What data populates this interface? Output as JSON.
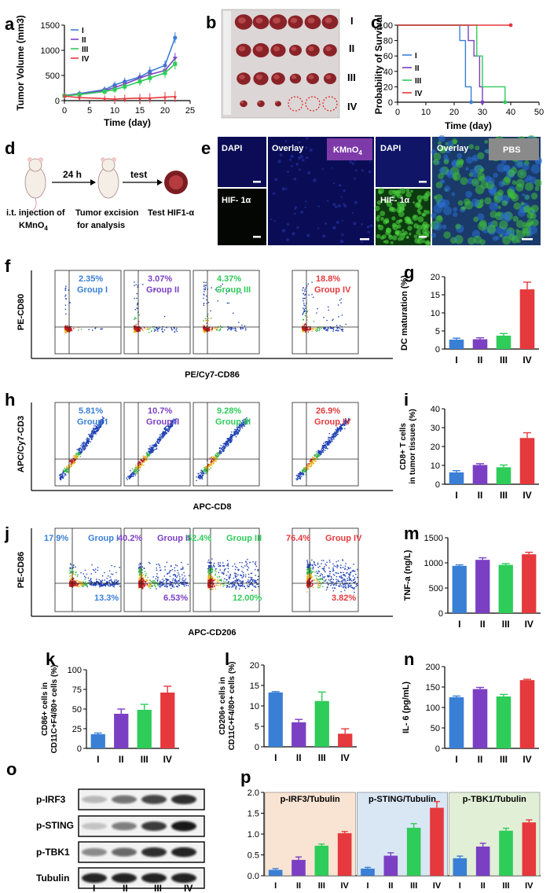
{
  "panel_labels": [
    "a",
    "b",
    "c",
    "d",
    "e",
    "f",
    "g",
    "h",
    "i",
    "j",
    "k",
    "l",
    "m",
    "n",
    "o",
    "p"
  ],
  "groups": [
    "I",
    "II",
    "III",
    "IV"
  ],
  "group_colors": [
    "#3a7fd6",
    "#7b3fc4",
    "#2ecc59",
    "#e5393d"
  ],
  "b": {
    "row_labels": [
      "I",
      "II",
      "III",
      "IV"
    ]
  },
  "d": {
    "step1": "24 h",
    "step2": "test",
    "cap1_l1": "i.t. injection of",
    "cap1_l2": "KMnO",
    "cap2_l1": "Tumor excision",
    "cap2_l2": "for analysis",
    "cap3_l1": "Test HIF1-α"
  },
  "e": {
    "dapi": "DAPI",
    "overlay": "Overlay",
    "hif": "HIF- 1α",
    "kmno4": "KMnO",
    "pbs": "PBS"
  },
  "flow": {
    "f": {
      "ylabel": "PE-CD80",
      "xlabel": "PE/Cy7-CD86",
      "pcts": [
        "2.35%",
        "3.07%",
        "4.37%",
        "18.8%"
      ],
      "names": [
        "Group I",
        "Group II",
        "Group III",
        "Group IV"
      ]
    },
    "h": {
      "ylabel": "APC/Cy7-CD3",
      "xlabel": "APC-CD8",
      "pcts": [
        "5.81%",
        "10.7%",
        "9.28%",
        "26.9%"
      ],
      "names": [
        "Group I",
        "Group II",
        "Group III",
        "Group IV"
      ]
    },
    "j": {
      "ylabel": "PE-CD86",
      "xlabel": "APC-CD206",
      "tl": [
        "17.9%",
        "40.2%",
        "52.4%",
        "76.4%"
      ],
      "names": [
        "Group I",
        "Group II",
        "Group III",
        "Group IV"
      ],
      "br": [
        "13.3%",
        "6.53%",
        "12.00%",
        "3.82%"
      ]
    }
  },
  "o": {
    "rows": [
      "p-IRF3",
      "p-STING",
      "p-TBK1",
      "Tubulin"
    ],
    "lanes": [
      "I",
      "II",
      "III",
      "IV"
    ]
  },
  "chart_data": [
    {
      "panel": "a",
      "type": "line",
      "xlabel": "Time (day)",
      "ylabel": "Tumor Volume (mm3)",
      "xlim": [
        0,
        25
      ],
      "ylim": [
        0,
        1500
      ],
      "xticks": [
        0,
        5,
        10,
        15,
        20,
        25
      ],
      "yticks": [
        0,
        500,
        1000,
        1500
      ],
      "x": [
        0,
        3,
        8,
        10,
        12,
        15,
        17,
        20,
        22
      ],
      "series": [
        {
          "name": "I",
          "values": [
            100,
            140,
            220,
            310,
            380,
            470,
            580,
            700,
            1250
          ]
        },
        {
          "name": "II",
          "values": [
            100,
            130,
            200,
            260,
            330,
            450,
            520,
            600,
            840
          ]
        },
        {
          "name": "III",
          "values": [
            95,
            120,
            180,
            220,
            280,
            380,
            450,
            550,
            730
          ]
        },
        {
          "name": "IV",
          "values": [
            90,
            60,
            40,
            30,
            40,
            50,
            50,
            70,
            80
          ]
        }
      ]
    },
    {
      "panel": "c",
      "type": "line",
      "xlabel": "Time (day)",
      "ylabel": "Probability of Survival",
      "xlim": [
        0,
        50
      ],
      "ylim": [
        0,
        100
      ],
      "xticks": [
        0,
        10,
        20,
        30,
        40,
        50
      ],
      "yticks": [
        0,
        20,
        40,
        60,
        80,
        100
      ],
      "series": [
        {
          "name": "I",
          "steps": [
            [
              0,
              100
            ],
            [
              22,
              100
            ],
            [
              22,
              80
            ],
            [
              24,
              80
            ],
            [
              24,
              20
            ],
            [
              26,
              20
            ],
            [
              26,
              0
            ]
          ]
        },
        {
          "name": "II",
          "steps": [
            [
              0,
              100
            ],
            [
              25,
              100
            ],
            [
              25,
              80
            ],
            [
              27,
              80
            ],
            [
              27,
              60
            ],
            [
              29,
              60
            ],
            [
              29,
              20
            ],
            [
              30,
              20
            ],
            [
              30,
              0
            ]
          ]
        },
        {
          "name": "III",
          "steps": [
            [
              0,
              100
            ],
            [
              28,
              100
            ],
            [
              28,
              60
            ],
            [
              30,
              60
            ],
            [
              30,
              20
            ],
            [
              38,
              20
            ],
            [
              38,
              0
            ]
          ]
        },
        {
          "name": "IV",
          "steps": [
            [
              0,
              100
            ],
            [
              40,
              100
            ]
          ]
        }
      ]
    },
    {
      "panel": "g",
      "type": "bar",
      "ylabel": "DC maturation (%)",
      "ylim": [
        0,
        20
      ],
      "yticks": [
        0,
        5,
        10,
        15,
        20
      ],
      "categories": [
        "I",
        "II",
        "III",
        "IV"
      ],
      "values": [
        2.6,
        2.7,
        3.7,
        16.5
      ],
      "errors": [
        0.4,
        0.4,
        0.6,
        2.0
      ]
    },
    {
      "panel": "i",
      "type": "bar",
      "ylabel_l1": "CD8+ T cells",
      "ylabel_l2": "in tumor tissues (%)",
      "ylim": [
        0,
        40
      ],
      "yticks": [
        0,
        10,
        20,
        30,
        40
      ],
      "categories": [
        "I",
        "II",
        "III",
        "IV"
      ],
      "values": [
        6.3,
        10.2,
        9.0,
        24.5
      ],
      "errors": [
        0.9,
        0.7,
        1.2,
        2.8
      ]
    },
    {
      "panel": "m",
      "type": "bar",
      "ylabel": "TNF-a (ng/L)",
      "ylim": [
        0,
        1500
      ],
      "yticks": [
        0,
        500,
        1000,
        1500
      ],
      "categories": [
        "I",
        "II",
        "III",
        "IV"
      ],
      "values": [
        940,
        1060,
        960,
        1170
      ],
      "errors": [
        20,
        40,
        25,
        40
      ]
    },
    {
      "panel": "k",
      "type": "bar",
      "ylabel_l1": "CD86+ cells in",
      "ylabel_l2": "CD11C+F4/80+ cells (%)",
      "ylim": [
        0,
        100
      ],
      "yticks": [
        0,
        25,
        50,
        75,
        100
      ],
      "categories": [
        "I",
        "II",
        "III",
        "IV"
      ],
      "values": [
        18,
        44,
        49,
        71
      ],
      "errors": [
        1.5,
        6,
        7,
        8
      ]
    },
    {
      "panel": "l",
      "type": "bar",
      "ylabel_l1": "CD206+ cells in",
      "ylabel_l2": "CD11C+F4/80+ cells (%)",
      "ylim": [
        0,
        20
      ],
      "yticks": [
        0,
        5,
        10,
        15,
        20
      ],
      "categories": [
        "I",
        "II",
        "III",
        "IV"
      ],
      "values": [
        13.3,
        6.0,
        11.2,
        3.2
      ],
      "errors": [
        0.2,
        0.7,
        2.2,
        1.2
      ]
    },
    {
      "panel": "n",
      "type": "bar",
      "ylabel": "IL- 6 (pg/mL)",
      "ylim": [
        0,
        200
      ],
      "yticks": [
        0,
        50,
        100,
        150,
        200
      ],
      "categories": [
        "I",
        "II",
        "III",
        "IV"
      ],
      "values": [
        125,
        145,
        127,
        167
      ],
      "errors": [
        3,
        4,
        5,
        2
      ]
    },
    {
      "panel": "p",
      "type": "bar",
      "ylim": [
        0,
        2.0
      ],
      "yticks": [
        0.0,
        0.5,
        1.0,
        1.5,
        2.0
      ],
      "groups": [
        {
          "name": "p-IRF3/Tubulin",
          "categories": [
            "I",
            "II",
            "III",
            "IV"
          ],
          "values": [
            0.14,
            0.38,
            0.72,
            1.02
          ],
          "errors": [
            0.03,
            0.07,
            0.04,
            0.04
          ]
        },
        {
          "name": "p-STING/Tubulin",
          "categories": [
            "I",
            "II",
            "III",
            "IV"
          ],
          "values": [
            0.17,
            0.48,
            1.15,
            1.63
          ],
          "errors": [
            0.03,
            0.07,
            0.1,
            0.15
          ]
        },
        {
          "name": "p-TBK1/Tubulin",
          "categories": [
            "I",
            "II",
            "III",
            "IV"
          ],
          "values": [
            0.42,
            0.7,
            1.08,
            1.28
          ],
          "errors": [
            0.05,
            0.08,
            0.06,
            0.06
          ]
        }
      ]
    }
  ]
}
